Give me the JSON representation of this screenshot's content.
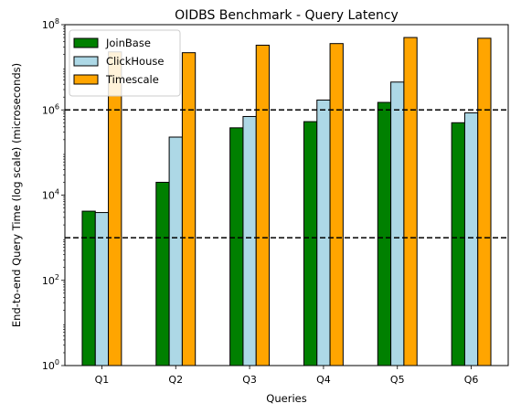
{
  "chart_data": {
    "type": "bar",
    "title": "OIDBS Benchmark - Query Latency",
    "xlabel": "Queries",
    "ylabel": "End-to-end Query Time (log scale) (microseconds)",
    "yscale": "log",
    "ylim": [
      1,
      100000000
    ],
    "yticks": [
      {
        "value": 1,
        "base": "10",
        "exp": "0"
      },
      {
        "value": 100,
        "base": "10",
        "exp": "2"
      },
      {
        "value": 10000,
        "base": "10",
        "exp": "4"
      },
      {
        "value": 1000000,
        "base": "10",
        "exp": "6"
      },
      {
        "value": 100000000,
        "base": "10",
        "exp": "8"
      }
    ],
    "categories": [
      "Q1",
      "Q2",
      "Q3",
      "Q4",
      "Q5",
      "Q6"
    ],
    "series": [
      {
        "name": "JoinBase",
        "color": "#008000",
        "values": [
          4200,
          20000,
          380000,
          530000,
          1500000,
          500000
        ]
      },
      {
        "name": "ClickHouse",
        "color": "#add8e6",
        "values": [
          3900,
          230000,
          700000,
          1700000,
          4500000,
          850000
        ]
      },
      {
        "name": "Timescale",
        "color": "#ffa500",
        "values": [
          23000000,
          22000000,
          33000000,
          36000000,
          50000000,
          48000000
        ]
      }
    ],
    "reference_lines": [
      1000,
      1000000
    ],
    "grid": false,
    "legend_position": "top-left"
  }
}
